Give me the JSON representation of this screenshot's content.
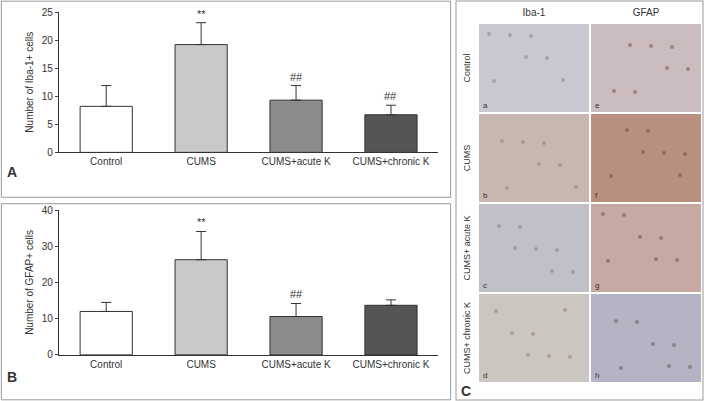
{
  "chart_data": [
    {
      "type": "bar",
      "title": "A",
      "categories": [
        "Control",
        "CUMS",
        "CUMS+acute K",
        "CUMS+chronic K"
      ],
      "values": [
        8.2,
        19.2,
        9.3,
        6.7
      ],
      "errors": [
        3.7,
        3.9,
        2.6,
        1.7
      ],
      "colors": [
        "#ffffff",
        "#c9c9c9",
        "#8c8c8c",
        "#555555"
      ],
      "y_label": "Number of Iba-1+ cells",
      "ylim": [
        0,
        25
      ],
      "yticks": [
        0,
        5,
        10,
        15,
        20,
        25
      ],
      "annotations": [
        {
          "category": "CUMS",
          "text": "**"
        },
        {
          "category": "CUMS+acute K",
          "text": "##"
        },
        {
          "category": "CUMS+chronic K",
          "text": "##"
        }
      ],
      "grid": false
    },
    {
      "type": "bar",
      "title": "B",
      "categories": [
        "Control",
        "CUMS",
        "CUMS+acute K",
        "CUMS+chronic K"
      ],
      "values": [
        12,
        26.3,
        10.6,
        13.7
      ],
      "errors": [
        2.5,
        7.8,
        3.6,
        1.5
      ],
      "colors": [
        "#ffffff",
        "#c9c9c9",
        "#8c8c8c",
        "#555555"
      ],
      "y_label": "Number of GFAP+ cells",
      "ylim": [
        0,
        40
      ],
      "yticks": [
        0,
        10,
        20,
        30,
        40
      ],
      "annotations": [
        {
          "category": "CUMS",
          "text": "**"
        },
        {
          "category": "CUMS+acute K",
          "text": "##"
        }
      ],
      "grid": false
    }
  ],
  "image_panel": {
    "label": "C",
    "columns": [
      "Iba-1",
      "GFAP"
    ],
    "rows": [
      "Control",
      "CUMS",
      "CUMS+ acute K",
      "CUMS+ chronic K"
    ],
    "sublabels": [
      [
        "a",
        "e"
      ],
      [
        "b",
        "f"
      ],
      [
        "c",
        "g"
      ],
      [
        "d",
        "h"
      ]
    ]
  }
}
